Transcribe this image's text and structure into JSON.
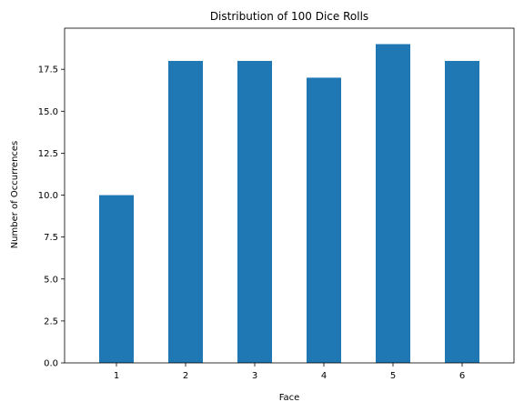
{
  "chart_data": {
    "type": "bar",
    "title": "Distribution of 100 Dice Rolls",
    "xlabel": "Face",
    "ylabel": "Number of Occurrences",
    "categories": [
      "1",
      "2",
      "3",
      "4",
      "5",
      "6"
    ],
    "values": [
      10,
      18,
      18,
      17,
      19,
      18
    ],
    "yticks": [
      "0.0",
      "2.5",
      "5.0",
      "7.5",
      "10.0",
      "12.5",
      "15.0",
      "17.5"
    ],
    "ytick_values": [
      0,
      2.5,
      5,
      7.5,
      10,
      12.5,
      15,
      17.5
    ],
    "ylim": [
      0,
      19.95
    ],
    "bar_color": "#1f77b4",
    "grid": false,
    "legend": "none"
  }
}
